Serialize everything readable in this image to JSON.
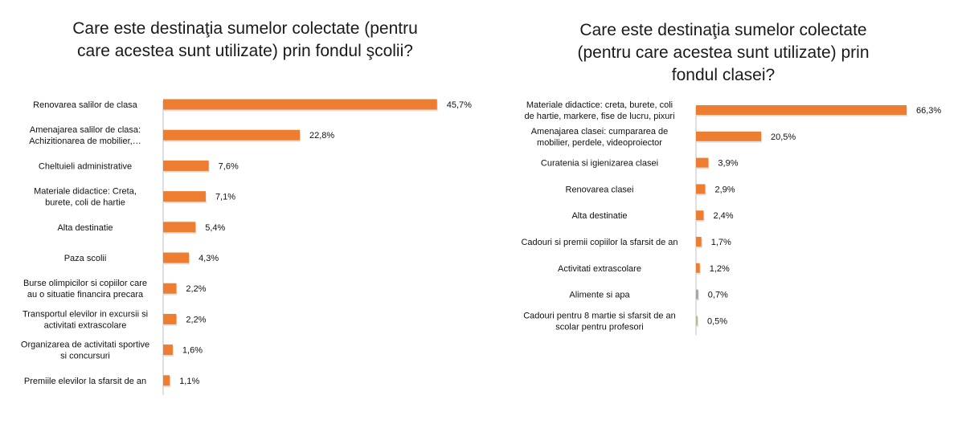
{
  "chart_data": [
    {
      "type": "bar",
      "orientation": "horizontal",
      "title": "Care este destinaţia sumelor colectate (pentru\ncare acestea sunt utilizate) prin fondul şcolii?",
      "categories": [
        "Renovarea salilor de clasa",
        "Amenajarea salilor de clasa:\nAchizitionarea de mobilier,…",
        "Cheltuieli administrative",
        "Materiale didactice: Creta,\nburete, coli de hartie",
        "Alta destinatie",
        "Paza scolii",
        "Burse olimpicilor si copiilor care\nau o situatie financira precara",
        "Transportul elevilor in excursii si\nactivitati extrascolare",
        "Organizarea de activitati sportive\nsi concursuri",
        "Premiile elevilor la sfarsit de an"
      ],
      "values": [
        45.7,
        22.8,
        7.6,
        7.1,
        5.4,
        4.3,
        2.2,
        2.2,
        1.6,
        1.1
      ],
      "value_labels": [
        "45,7%",
        "22,8%",
        "7,6%",
        "7,1%",
        "5,4%",
        "4,3%",
        "2,2%",
        "2,2%",
        "1,6%",
        "1,1%"
      ],
      "bar_colors": [
        "#ED7D31",
        "#ED7D31",
        "#ED7D31",
        "#ED7D31",
        "#ED7D31",
        "#ED7D31",
        "#ED7D31",
        "#ED7D31",
        "#ED7D31",
        "#ED7D31"
      ],
      "xlim": [
        0,
        46
      ],
      "grid": false
    },
    {
      "type": "bar",
      "orientation": "horizontal",
      "title": "Care este destinaţia sumelor colectate\n(pentru care acestea sunt utilizate) prin\nfondul clasei?",
      "categories": [
        "Materiale didactice: creta, burete, coli\nde hartie, markere, fise de lucru, pixuri",
        "Amenajarea clasei: cumpararea de\nmobilier, perdele, videoproiector",
        "Curatenia si igienizarea clasei",
        "Renovarea clasei",
        "Alta destinatie",
        "Cadouri si premii copiilor la sfarsit de an",
        "Activitati extrascolare",
        "Alimente si apa",
        "Cadouri pentru 8 martie si sfarsit de an\nscolar pentru profesori"
      ],
      "values": [
        66.3,
        20.5,
        3.9,
        2.9,
        2.4,
        1.7,
        1.2,
        0.7,
        0.5
      ],
      "value_labels": [
        "66,3%",
        "20,5%",
        "3,9%",
        "2,9%",
        "2,4%",
        "1,7%",
        "1,2%",
        "0,7%",
        "0,5%"
      ],
      "bar_colors": [
        "#ED7D31",
        "#ED7D31",
        "#ED7D31",
        "#ED7D31",
        "#ED7D31",
        "#ED7D31",
        "#ED7D31",
        "#A5A5A5",
        "#A9C47F"
      ],
      "xlim": [
        0,
        66.3
      ],
      "grid": false
    }
  ]
}
